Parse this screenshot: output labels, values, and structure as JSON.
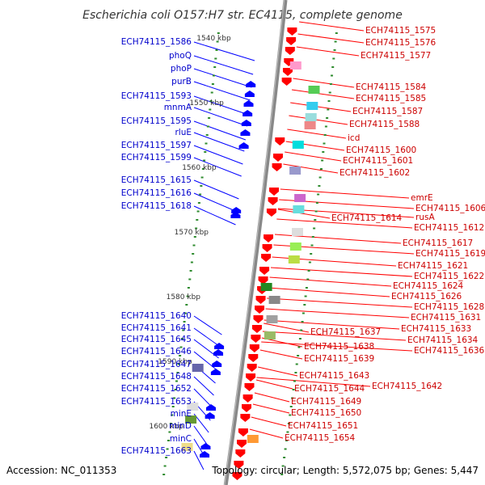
{
  "title": "Escherichia coli O157:H7 str. EC4115, complete genome",
  "footer": {
    "accession": "Accession: NC_011353",
    "topology": "Topology: circular; Length: 5,572,075 bp; Genes: 5,447"
  },
  "colors": {
    "left_gene": "#0000ff",
    "right_gene": "#ff0000",
    "backbone": "#888888",
    "tick": "#2e8b2e"
  },
  "kbp_labels": [
    {
      "text": "1540 kbp",
      "kb": 1540
    },
    {
      "text": "1550 kbp",
      "kb": 1550
    },
    {
      "text": "1560 kbp",
      "kb": 1560
    },
    {
      "text": "1570 kbp",
      "kb": 1570
    },
    {
      "text": "1580 kbp",
      "kb": 1580
    },
    {
      "text": "1590 kbp",
      "kb": 1590
    },
    {
      "text": "1600 kbp",
      "kb": 1600
    }
  ],
  "left_labels": [
    "ECH74115_1586",
    "phoQ",
    "phoP",
    "purB",
    "ECH74115_1593",
    "mnmA",
    "ECH74115_1595",
    "rluE",
    "ECH74115_1597",
    "ECH74115_1599",
    "ECH74115_1615",
    "ECH74115_1616",
    "ECH74115_1618",
    "ECH74115_1640",
    "ECH74115_1641",
    "ECH74115_1645",
    "ECH74115_1646",
    "ECH74115_1647",
    "ECH74115_1648",
    "ECH74115_1652",
    "ECH74115_1653",
    "minE",
    "minD",
    "minC",
    "ECH74115_1663"
  ],
  "right_labels": [
    "ECH74115_1575",
    "ECH74115_1576",
    "ECH74115_1577",
    "ECH74115_1584",
    "ECH74115_1585",
    "ECH74115_1587",
    "ECH74115_1588",
    "icd",
    "ECH74115_1600",
    "ECH74115_1601",
    "ECH74115_1602",
    "emrE",
    "ECH74115_1606",
    "rusA",
    "ECH74115_1614",
    "ECH74115_1612",
    "ECH74115_1617",
    "ECH74115_1619",
    "ECH74115_1621",
    "ECH74115_1622",
    "ECH74115_1624",
    "ECH74115_1626",
    "ECH74115_1628",
    "ECH74115_1631",
    "ECH74115_1633",
    "ECH74115_1637",
    "ECH74115_1634",
    "ECH74115_1638",
    "ECH74115_1636",
    "ECH74115_1639",
    "ECH74115_1643",
    "ECH74115_1642",
    "ECH74115_1644",
    "ECH74115_1649",
    "ECH74115_1650",
    "ECH74115_1651",
    "ECH74115_1654"
  ]
}
